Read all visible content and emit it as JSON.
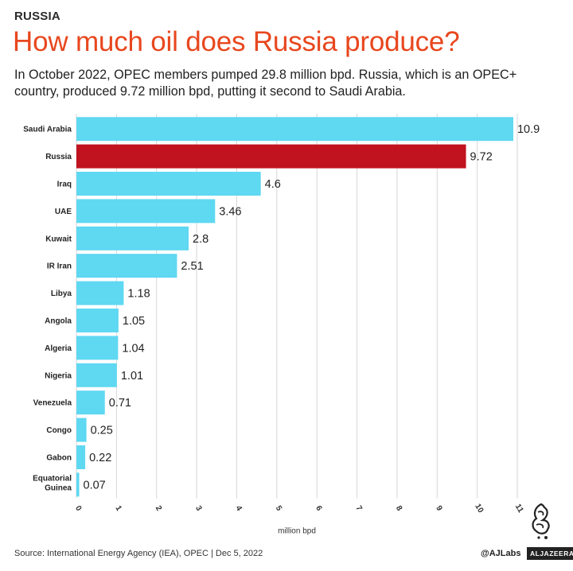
{
  "header": {
    "kicker": "RUSSIA",
    "title": "How much oil does Russia produce?",
    "subtitle": "In October 2022, OPEC members pumped 29.8 million bpd. Russia, which is an OPEC+ country, produced 9.72 million bpd, putting it second to Saudi Arabia."
  },
  "chart_data": {
    "type": "bar",
    "orientation": "horizontal",
    "categories": [
      "Saudi Arabia",
      "Russia",
      "Iraq",
      "UAE",
      "Kuwait",
      "IR Iran",
      "Libya",
      "Angola",
      "Algeria",
      "Nigeria",
      "Venezuela",
      "Congo",
      "Gabon",
      "Equatorial Guinea"
    ],
    "values": [
      10.9,
      9.72,
      4.6,
      3.46,
      2.8,
      2.51,
      1.18,
      1.05,
      1.04,
      1.01,
      0.71,
      0.25,
      0.22,
      0.07
    ],
    "value_labels": [
      "10.9",
      "9.72",
      "4.6",
      "3.46",
      "2.8",
      "2.51",
      "1.18",
      "1.05",
      "1.04",
      "1.01",
      "0.71",
      "0.25",
      "0.22",
      "0.07"
    ],
    "highlight": "Russia",
    "colors": {
      "default": "#5fd8f2",
      "highlight": "#c1121f",
      "grid": "#d6d6d6"
    },
    "xlabel": "million bpd",
    "xticks": [
      "0",
      "1",
      "2",
      "3",
      "4",
      "5",
      "6",
      "7",
      "8",
      "9",
      "10",
      "11"
    ],
    "xlim": [
      0,
      11
    ],
    "grid": true
  },
  "footer": {
    "source": "Source: International Energy Agency (IEA), OPEC | Dec 5, 2022",
    "handle": "@AJLabs",
    "brand": "ALJAZEERA"
  }
}
